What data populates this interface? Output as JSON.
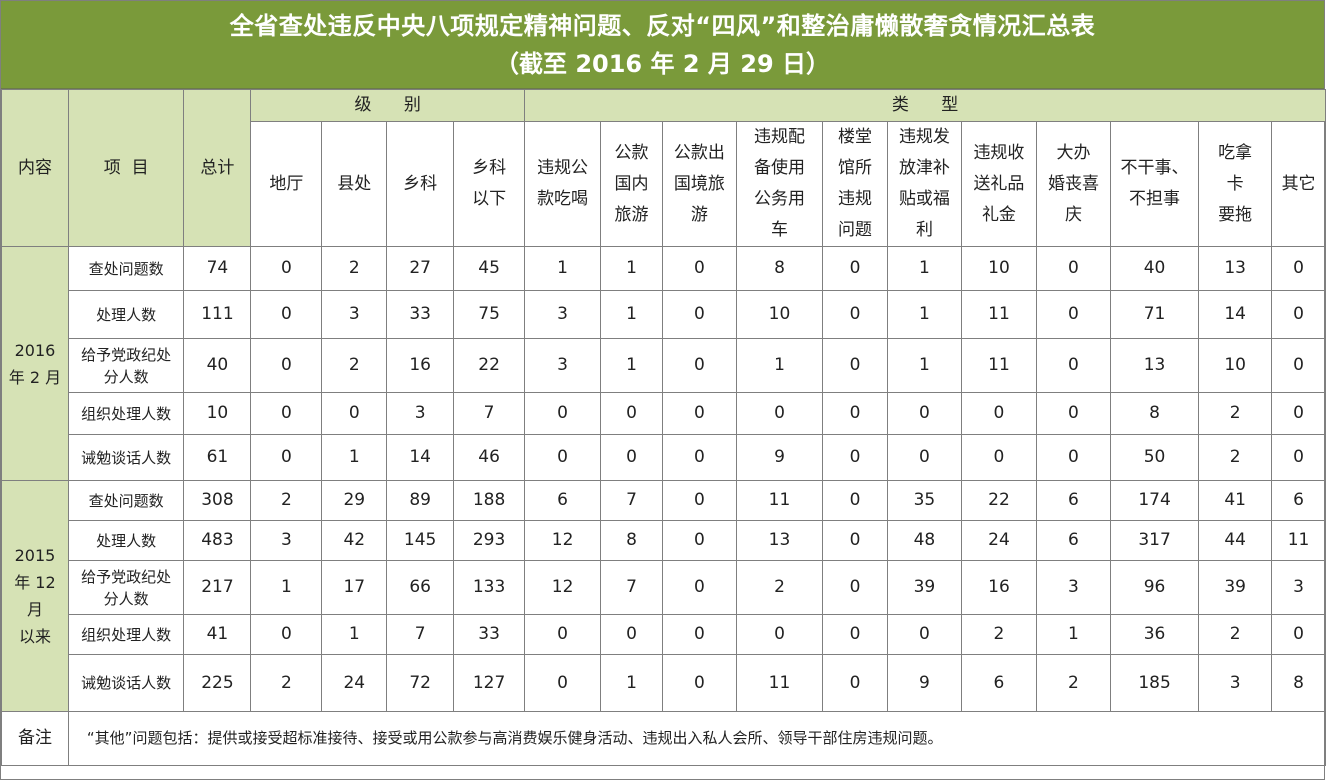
{
  "title": {
    "line1": "全省查处违反中央八项规定精神问题、反对“四风”和整治庸懒散奢贪情况汇总表",
    "line2": "（截至 2016 年 2 月 29 日）"
  },
  "header": {
    "content": "内容",
    "item": "项  目",
    "total": "总计",
    "level_group": "级      别",
    "type_group": "类      型",
    "levels": [
      "地厅",
      "县处",
      "乡科",
      "乡科\n以下"
    ],
    "types": [
      "违规公\n款吃喝",
      "公款\n国内\n旅游",
      "公款出\n国境旅\n游",
      "违规配\n备使用\n公务用\n车",
      "楼堂\n馆所\n违规\n问题",
      "违规发\n放津补\n贴或福\n利",
      "违规收\n送礼品\n礼金",
      "大办\n婚丧喜\n庆",
      "不干事、\n不担事",
      "吃拿\n卡\n要拖",
      "其它"
    ]
  },
  "groups": [
    {
      "label": "2016\n年 2 月",
      "rows": [
        {
          "item": "查处问题数",
          "values": [
            "74",
            "0",
            "2",
            "27",
            "45",
            "1",
            "1",
            "0",
            "8",
            "0",
            "1",
            "10",
            "0",
            "40",
            "13",
            "0"
          ]
        },
        {
          "item": "处理人数",
          "values": [
            "111",
            "0",
            "3",
            "33",
            "75",
            "3",
            "1",
            "0",
            "10",
            "0",
            "1",
            "11",
            "0",
            "71",
            "14",
            "0"
          ]
        },
        {
          "item": "给予党政纪处\n分人数",
          "values": [
            "40",
            "0",
            "2",
            "16",
            "22",
            "3",
            "1",
            "0",
            "1",
            "0",
            "1",
            "11",
            "0",
            "13",
            "10",
            "0"
          ]
        },
        {
          "item": "组织处理人数",
          "values": [
            "10",
            "0",
            "0",
            "3",
            "7",
            "0",
            "0",
            "0",
            "0",
            "0",
            "0",
            "0",
            "0",
            "8",
            "2",
            "0"
          ]
        },
        {
          "item": "诫勉谈话人数",
          "values": [
            "61",
            "0",
            "1",
            "14",
            "46",
            "0",
            "0",
            "0",
            "9",
            "0",
            "0",
            "0",
            "0",
            "50",
            "2",
            "0"
          ]
        }
      ]
    },
    {
      "label": "2015\n年 12\n月\n以来",
      "rows": [
        {
          "item": "查处问题数",
          "values": [
            "308",
            "2",
            "29",
            "89",
            "188",
            "6",
            "7",
            "0",
            "11",
            "0",
            "35",
            "22",
            "6",
            "174",
            "41",
            "6"
          ]
        },
        {
          "item": "处理人数",
          "values": [
            "483",
            "3",
            "42",
            "145",
            "293",
            "12",
            "8",
            "0",
            "13",
            "0",
            "48",
            "24",
            "6",
            "317",
            "44",
            "11"
          ]
        },
        {
          "item": "给予党政纪处\n分人数",
          "values": [
            "217",
            "1",
            "17",
            "66",
            "133",
            "12",
            "7",
            "0",
            "2",
            "0",
            "39",
            "16",
            "3",
            "96",
            "39",
            "3"
          ]
        },
        {
          "item": "组织处理人数",
          "values": [
            "41",
            "0",
            "1",
            "7",
            "33",
            "0",
            "0",
            "0",
            "0",
            "0",
            "0",
            "2",
            "1",
            "36",
            "2",
            "0"
          ]
        },
        {
          "item": "诫勉谈话人数",
          "values": [
            "225",
            "2",
            "24",
            "72",
            "127",
            "0",
            "1",
            "0",
            "11",
            "0",
            "9",
            "6",
            "2",
            "185",
            "3",
            "8"
          ]
        }
      ]
    }
  ],
  "note": {
    "label": "备注",
    "text": "“其他”问题包括：提供或接受超标准接待、接受或用公款参与高消费娱乐健身活动、违规出入私人会所、领导干部住房违规问题。"
  },
  "colors": {
    "title_bg": "#7a9a3a",
    "header_bg": "#d6e2b5",
    "border": "#7f7f7f"
  }
}
